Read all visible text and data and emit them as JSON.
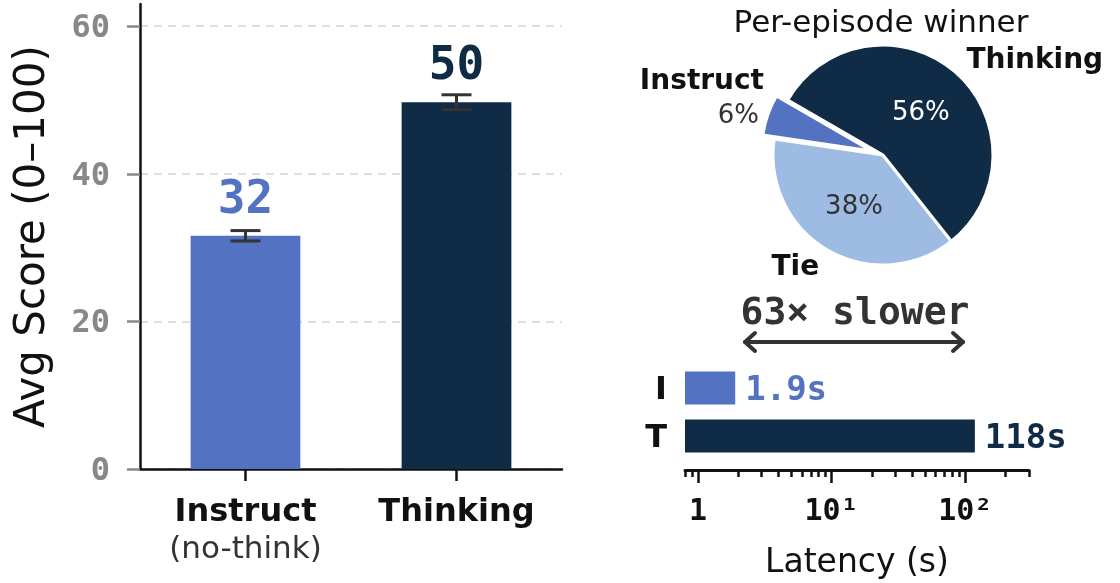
{
  "chart_data": [
    {
      "type": "bar",
      "ylabel": "Avg Score (0–100)",
      "categories": [
        "Instruct\n(no-think)",
        "Thinking"
      ],
      "values": [
        31.6,
        49.7
      ],
      "colors": [
        "#5372c2",
        "#0f2b46"
      ],
      "errors": [
        0.7,
        1.0
      ],
      "value_labels": [
        "32",
        "50"
      ],
      "ylim": [
        0,
        63
      ],
      "yticks": [
        0,
        20,
        40,
        60
      ],
      "grid": "y"
    },
    {
      "type": "pie",
      "title": "Per-episode winner",
      "categories": [
        "Instruct",
        "Tie",
        "Thinking"
      ],
      "values": [
        6,
        38,
        56
      ],
      "colors": [
        "#5372c2",
        "#9dbbe3",
        "#0f2b46"
      ],
      "value_labels": [
        "6%",
        "38%",
        "56%"
      ]
    },
    {
      "type": "bar",
      "orientation": "horizontal",
      "categories": [
        "I",
        "T"
      ],
      "values": [
        1.9,
        118
      ],
      "colors": [
        "#5372c2",
        "#0f2b46"
      ],
      "value_labels": [
        "1.9s",
        "118s"
      ],
      "log": "x",
      "xlim": [
        0.8,
        300
      ],
      "xticks": [
        {
          "value": 0.8,
          "label": null
        },
        {
          "value": 0.9,
          "label": null
        },
        1,
        {
          "value": 2,
          "label": null
        },
        {
          "value": 3,
          "label": null
        },
        {
          "value": 4,
          "label": null
        },
        {
          "value": 5,
          "label": null
        },
        {
          "value": 6,
          "label": null
        },
        {
          "value": 7,
          "label": null
        },
        {
          "value": 8,
          "label": null
        },
        {
          "value": 9,
          "label": null
        },
        {
          "value": 10,
          "label": "10¹"
        },
        {
          "value": 20,
          "label": null
        },
        {
          "value": 30,
          "label": null
        },
        {
          "value": 40,
          "label": null
        },
        {
          "value": 50,
          "label": null
        },
        {
          "value": 60,
          "label": null
        },
        {
          "value": 70,
          "label": null
        },
        {
          "value": 80,
          "label": null
        },
        {
          "value": 90,
          "label": null
        },
        {
          "value": 100,
          "label": "10²"
        },
        {
          "value": 200,
          "label": null
        },
        {
          "value": 300,
          "label": null
        }
      ],
      "xlabel": "Latency (s)",
      "annotations": [
        "63× slower"
      ]
    }
  ]
}
